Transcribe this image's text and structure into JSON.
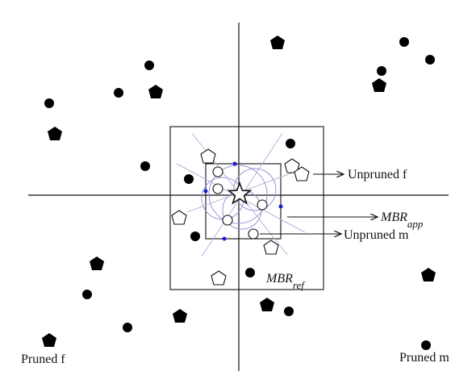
{
  "labels": {
    "unpruned_f": "Unpruned f",
    "mbr_app": "MBR",
    "mbr_app_sub": "app",
    "unpruned_m": "Unpruned m",
    "mbr_ref": "MBR",
    "mbr_ref_sub": "ref",
    "pruned_f": "Pruned f",
    "pruned_m": "Pruned m"
  },
  "colors": {
    "stroke": "#111111",
    "dot": "#000000",
    "blue_point": "#1a1ad6",
    "circle_arc": "#9a93d6",
    "diagonal": "#b7b3dc"
  },
  "icons": {
    "query": "star-icon",
    "male": "circle-icon",
    "female": "pentagon-icon"
  }
}
